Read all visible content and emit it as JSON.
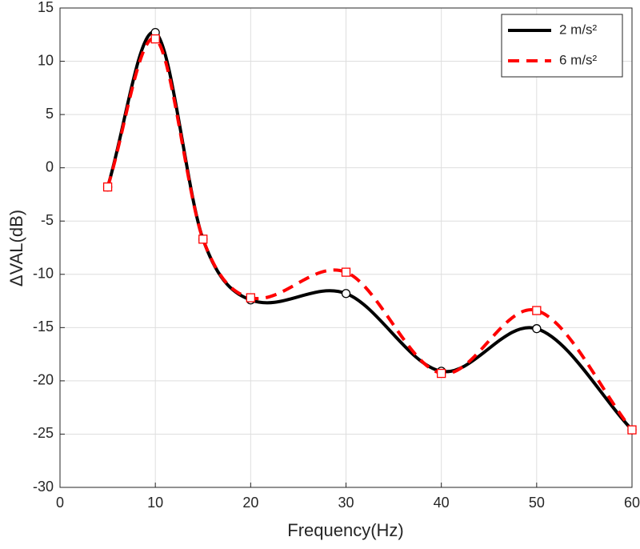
{
  "chart_data": {
    "type": "line",
    "xlabel": "Frequency(Hz)",
    "ylabel": "ΔVAL(dB)",
    "x": [
      5,
      10,
      15,
      20,
      30,
      40,
      50,
      60
    ],
    "series": [
      {
        "name": "2 m/s²",
        "color": "#000000",
        "line_style": "solid",
        "marker": "circle",
        "values": [
          -1.8,
          12.7,
          -6.7,
          -12.4,
          -11.8,
          -19.1,
          -15.1,
          -24.6
        ]
      },
      {
        "name": "6 m/s²",
        "color": "#ff0000",
        "line_style": "dashed",
        "marker": "square",
        "values": [
          -1.8,
          12.1,
          -6.7,
          -12.2,
          -9.8,
          -19.3,
          -13.4,
          -24.6
        ]
      }
    ],
    "xlim": [
      0,
      60
    ],
    "xticks": [
      0,
      10,
      20,
      30,
      40,
      50,
      60
    ],
    "ylim": [
      -30,
      15
    ],
    "yticks": [
      -30,
      -25,
      -20,
      -15,
      -10,
      -5,
      0,
      5,
      10,
      15
    ],
    "grid": true,
    "legend": "northeast"
  }
}
